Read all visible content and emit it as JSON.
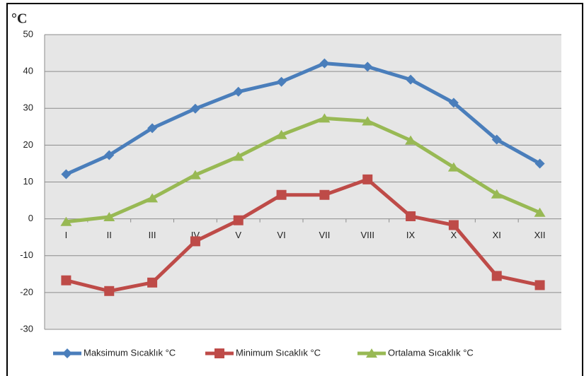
{
  "chart_data": {
    "type": "line",
    "ylabel": "°C",
    "categories": [
      "I",
      "II",
      "III",
      "IV",
      "V",
      "VI",
      "VII",
      "VIII",
      "IX",
      "X",
      "XI",
      "XII"
    ],
    "series": [
      {
        "name": "Maksimum Sıcaklık °C",
        "color": "#4a7ebb",
        "marker": "diamond",
        "values": [
          12.1,
          17.3,
          24.6,
          29.9,
          34.5,
          37.2,
          42.2,
          41.3,
          37.8,
          31.5,
          21.5,
          15
        ]
      },
      {
        "name": "Minimum Sıcaklık °C",
        "color": "#be4b48",
        "marker": "square",
        "values": [
          -16.7,
          -19.6,
          -17.3,
          -6.1,
          -0.4,
          6.5,
          6.5,
          10.7,
          0.7,
          -1.7,
          -15.5,
          -18
        ]
      },
      {
        "name": "Ortalama Sıcaklık °C",
        "color": "#98b954",
        "marker": "triangle",
        "values": [
          -0.8,
          0.5,
          5.6,
          11.9,
          16.9,
          22.8,
          27.3,
          26.5,
          21.3,
          14,
          6.7,
          1.7
        ]
      }
    ],
    "ylim": [
      -30,
      50
    ],
    "yticks": [
      -30,
      -20,
      -10,
      0,
      10,
      20,
      30,
      40,
      50
    ],
    "grid": true,
    "legend": "bottom"
  }
}
